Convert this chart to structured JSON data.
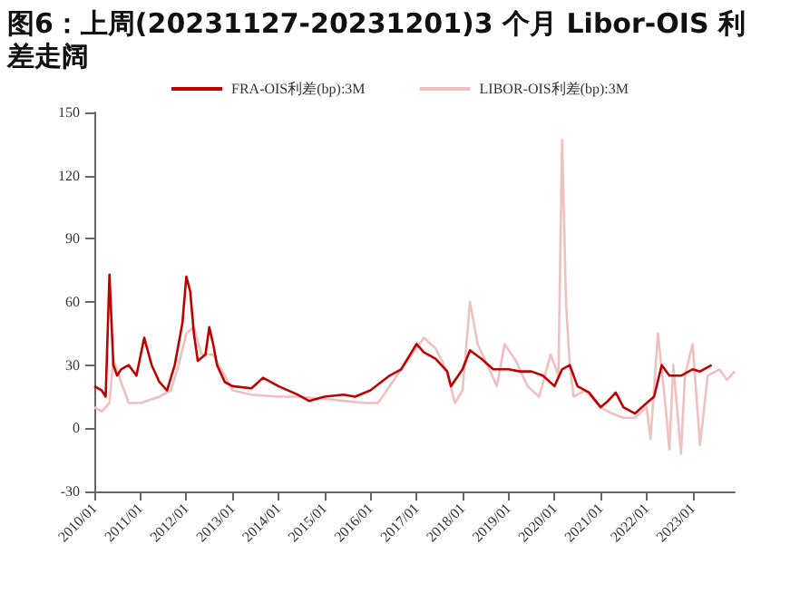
{
  "chart_data": {
    "type": "line",
    "title": "图6：上周(20231127-20231201)3 个月 Libor-OIS 利差走阔",
    "xlim": [
      "2010-01",
      "2023-12"
    ],
    "xticks": [
      {
        "value": "2010-01",
        "label": "2010/01"
      },
      {
        "value": "2011-01",
        "label": "2011/01"
      },
      {
        "value": "2012-01",
        "label": "2012/01"
      },
      {
        "value": "2013-01",
        "label": "2013/01"
      },
      {
        "value": "2014-01",
        "label": "2014/01"
      },
      {
        "value": "2015-01",
        "label": "2015/01"
      },
      {
        "value": "2016-01",
        "label": "2016/01"
      },
      {
        "value": "2017-01",
        "label": "2017/01"
      },
      {
        "value": "2018-01",
        "label": "2018/01"
      },
      {
        "value": "2019-01",
        "label": "2019/01"
      },
      {
        "value": "2020-01",
        "label": "2020/01"
      },
      {
        "value": "2021-01",
        "label": "2021/01"
      },
      {
        "value": "2022-01",
        "label": "2022/01"
      },
      {
        "value": "2023-01",
        "label": "2023/01"
      }
    ],
    "ylim": [
      -30,
      150
    ],
    "yticks": [
      -30,
      0,
      30,
      60,
      90,
      120,
      150
    ],
    "grid": false,
    "legend": "top",
    "marker": "none",
    "line_style": "solid",
    "series": [
      {
        "name": "FRA-OIS利差(bp):3M",
        "color": "#c00000",
        "x": [
          "2010-01",
          "2010-03",
          "2010-04",
          "2010-05",
          "2010-06",
          "2010-07",
          "2010-08",
          "2010-10",
          "2010-12",
          "2011-02",
          "2011-04",
          "2011-06",
          "2011-08",
          "2011-10",
          "2011-12",
          "2012-01",
          "2012-02",
          "2012-03",
          "2012-04",
          "2012-06",
          "2012-07",
          "2012-08",
          "2012-09",
          "2012-11",
          "2013-01",
          "2013-06",
          "2013-09",
          "2014-01",
          "2014-06",
          "2014-09",
          "2015-01",
          "2015-06",
          "2015-09",
          "2016-01",
          "2016-06",
          "2016-09",
          "2017-01",
          "2017-03",
          "2017-06",
          "2017-09",
          "2017-10",
          "2018-01",
          "2018-03",
          "2018-06",
          "2018-09",
          "2019-01",
          "2019-04",
          "2019-07",
          "2019-10",
          "2020-01",
          "2020-03",
          "2020-05",
          "2020-07",
          "2020-10",
          "2021-01",
          "2021-03",
          "2021-05",
          "2021-07",
          "2021-10",
          "2022-01",
          "2022-03",
          "2022-05",
          "2022-07",
          "2022-10",
          "2023-01",
          "2023-03",
          "2023-06"
        ],
        "values": [
          20,
          18,
          15,
          73,
          30,
          25,
          28,
          30,
          25,
          43,
          30,
          22,
          18,
          30,
          50,
          72,
          65,
          45,
          32,
          35,
          48,
          40,
          30,
          22,
          20,
          19,
          24,
          20,
          16,
          13,
          15,
          16,
          15,
          18,
          25,
          28,
          40,
          36,
          33,
          27,
          20,
          28,
          37,
          33,
          28,
          28,
          27,
          27,
          25,
          20,
          28,
          30,
          20,
          17,
          10,
          13,
          17,
          10,
          7,
          12,
          15,
          30,
          25,
          25,
          28,
          27,
          30
        ]
      },
      {
        "name": "LIBOR-OIS利差(bp):3M",
        "color": "#f0c0c0",
        "x": [
          "2010-01",
          "2010-03",
          "2010-05",
          "2010-06",
          "2010-08",
          "2010-10",
          "2011-01",
          "2011-06",
          "2011-09",
          "2011-11",
          "2012-01",
          "2012-03",
          "2012-05",
          "2012-08",
          "2012-11",
          "2013-01",
          "2013-06",
          "2014-01",
          "2014-06",
          "2015-01",
          "2015-06",
          "2015-12",
          "2016-03",
          "2016-06",
          "2016-09",
          "2017-01",
          "2017-03",
          "2017-06",
          "2017-09",
          "2017-11",
          "2018-01",
          "2018-03",
          "2018-05",
          "2018-08",
          "2018-10",
          "2018-12",
          "2019-03",
          "2019-06",
          "2019-09",
          "2019-12",
          "2020-02",
          "2020-03",
          "2020-04",
          "2020-05",
          "2020-06",
          "2020-09",
          "2021-01",
          "2021-04",
          "2021-07",
          "2021-10",
          "2022-01",
          "2022-02",
          "2022-04",
          "2022-06",
          "2022-07",
          "2022-08",
          "2022-10",
          "2022-11",
          "2023-01",
          "2023-03",
          "2023-05",
          "2023-08",
          "2023-10",
          "2023-12"
        ],
        "values": [
          10,
          8,
          12,
          33,
          22,
          12,
          12,
          15,
          18,
          30,
          45,
          48,
          35,
          35,
          25,
          18,
          16,
          15,
          15,
          14,
          13,
          12,
          12,
          20,
          28,
          38,
          43,
          38,
          27,
          12,
          18,
          60,
          40,
          28,
          20,
          40,
          32,
          20,
          15,
          35,
          25,
          137,
          60,
          30,
          15,
          18,
          10,
          7,
          5,
          5,
          10,
          -5,
          45,
          10,
          -10,
          30,
          -12,
          25,
          40,
          -8,
          25,
          28,
          23,
          27
        ]
      }
    ]
  }
}
